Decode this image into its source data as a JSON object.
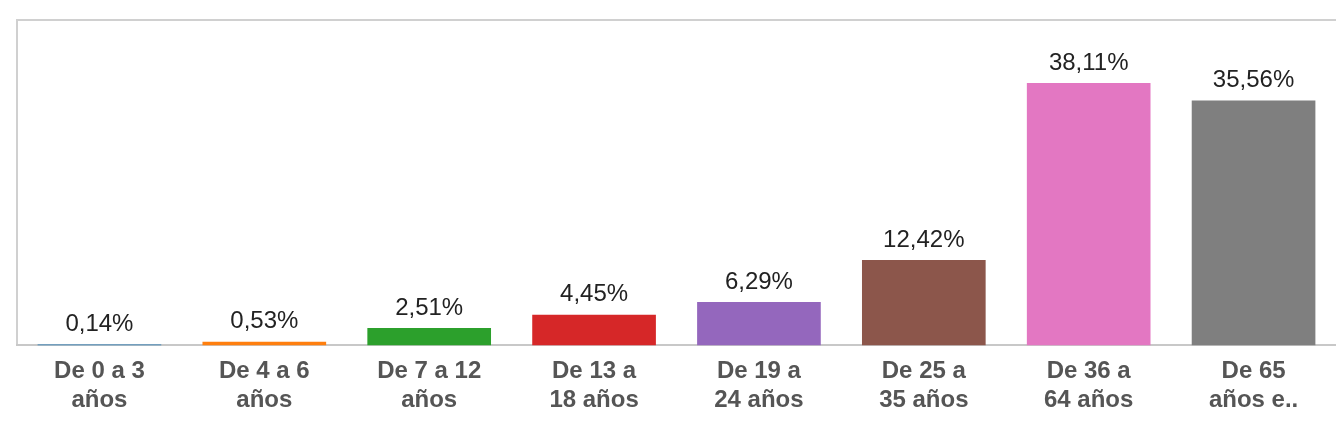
{
  "chart_data": {
    "type": "bar",
    "categories": [
      "De 0 a 3 años",
      "De 4 a 6 años",
      "De 7 a 12 años",
      "De 13 a 18 años",
      "De 19 a 24 años",
      "De 25 a 35 años",
      "De 36 a 64 años",
      "De 65 años e.."
    ],
    "values": [
      0.14,
      0.53,
      2.51,
      4.45,
      6.29,
      12.42,
      38.11,
      35.56
    ],
    "colors": [
      "#1f77b4",
      "#ff7f0e",
      "#2ca02c",
      "#d62728",
      "#9467bd",
      "#8c564b",
      "#e377c2",
      "#7f7f7f"
    ],
    "value_labels": [
      "0,14%",
      "0,53%",
      "2,51%",
      "4,45%",
      "6,29%",
      "12,42%",
      "38,11%",
      "35,56%"
    ],
    "grid": false,
    "legend": false
  }
}
